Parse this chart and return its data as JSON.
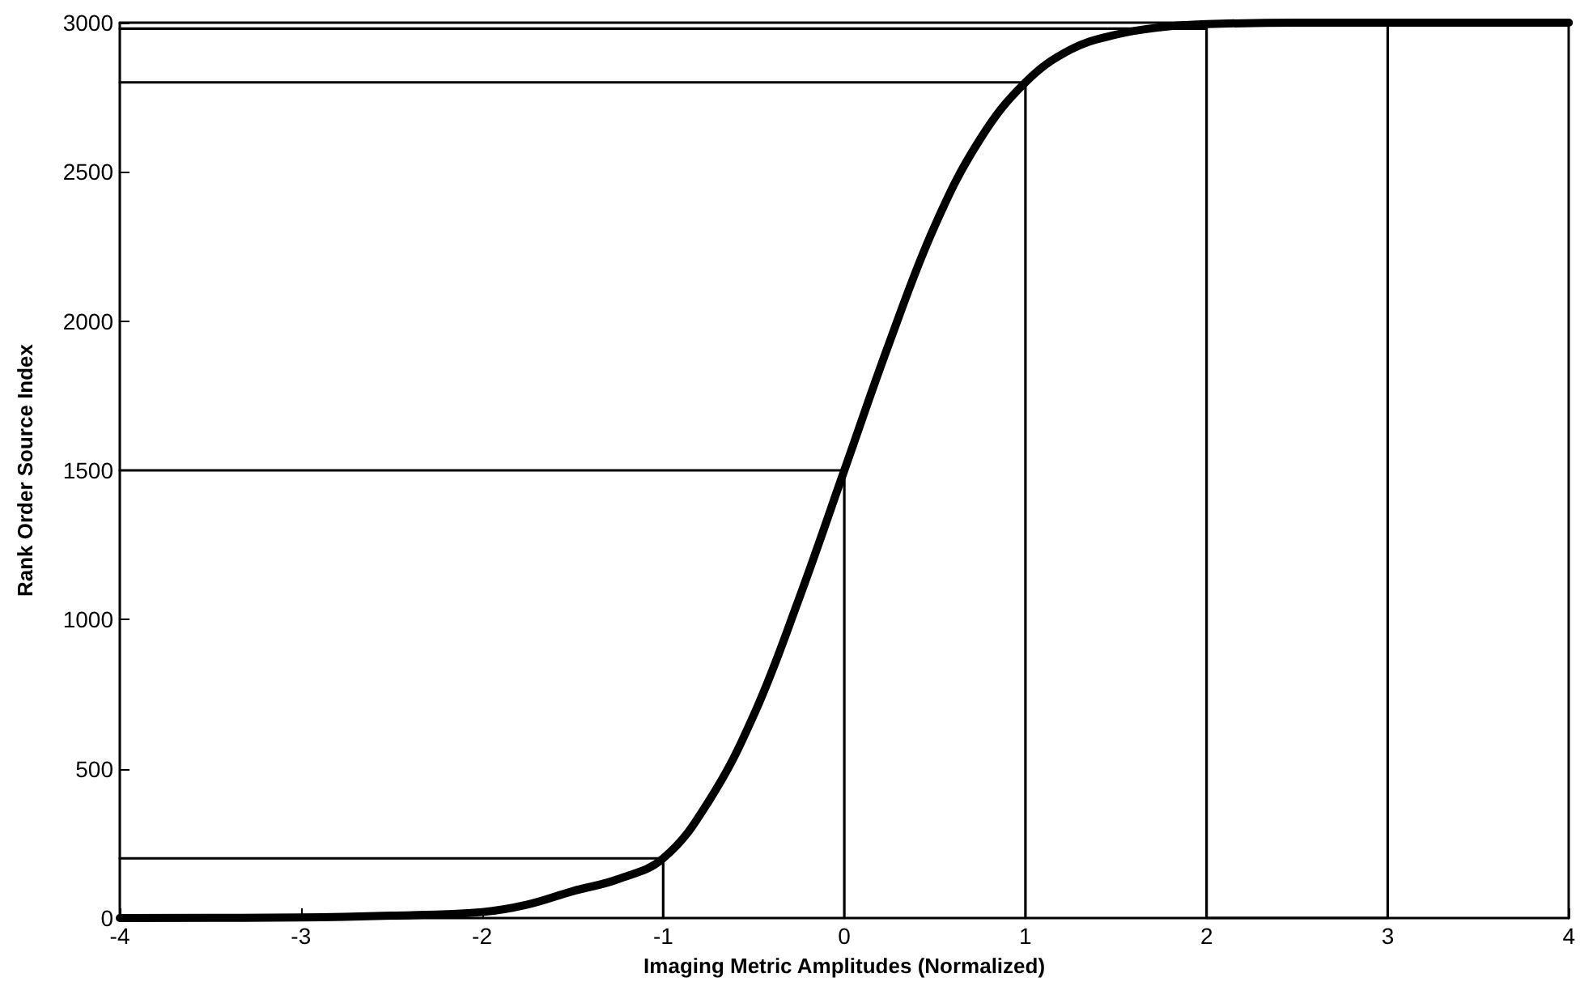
{
  "chart_data": {
    "type": "line",
    "xlabel": "Imaging Metric Amplitudes (Normalized)",
    "ylabel": "Rank Order Source Index",
    "xlim": [
      -4,
      4
    ],
    "xticks": [
      -4,
      -3,
      -2,
      -1,
      0,
      1,
      2,
      3,
      4
    ],
    "ylim": [
      0,
      3000
    ],
    "yticks": [
      0,
      500,
      1000,
      1500,
      2000,
      2500,
      3000
    ],
    "grid": false,
    "marker": "none",
    "line_style": "solid",
    "series": [
      {
        "color": "#000000",
        "x": [
          -4,
          -3,
          -2.5,
          -2,
          -1.75,
          -1.5,
          -1.25,
          -1,
          -0.75,
          -0.5,
          -0.25,
          0,
          0.25,
          0.5,
          0.75,
          1,
          1.25,
          1.5,
          1.75,
          2,
          2.5,
          3,
          4
        ],
        "values": [
          0,
          2,
          8,
          20,
          45,
          90,
          130,
          200,
          390,
          680,
          1070,
          1500,
          1930,
          2320,
          2610,
          2800,
          2910,
          2960,
          2985,
          2995,
          3000,
          3000,
          3000
        ]
      },
      {
        "color": "#000000",
        "x": [
          -4,
          -1,
          -1
        ],
        "values": [
          200,
          200,
          0
        ]
      },
      {
        "color": "#000000",
        "x": [
          -4,
          0,
          0
        ],
        "values": [
          1500,
          1500,
          0
        ]
      },
      {
        "color": "#000000",
        "x": [
          -4,
          1,
          1
        ],
        "values": [
          2800,
          2800,
          0
        ]
      },
      {
        "color": "#000000",
        "x": [
          -4,
          2,
          2,
          3,
          3
        ],
        "values": [
          2980,
          2980,
          0,
          0,
          3000
        ]
      }
    ]
  }
}
